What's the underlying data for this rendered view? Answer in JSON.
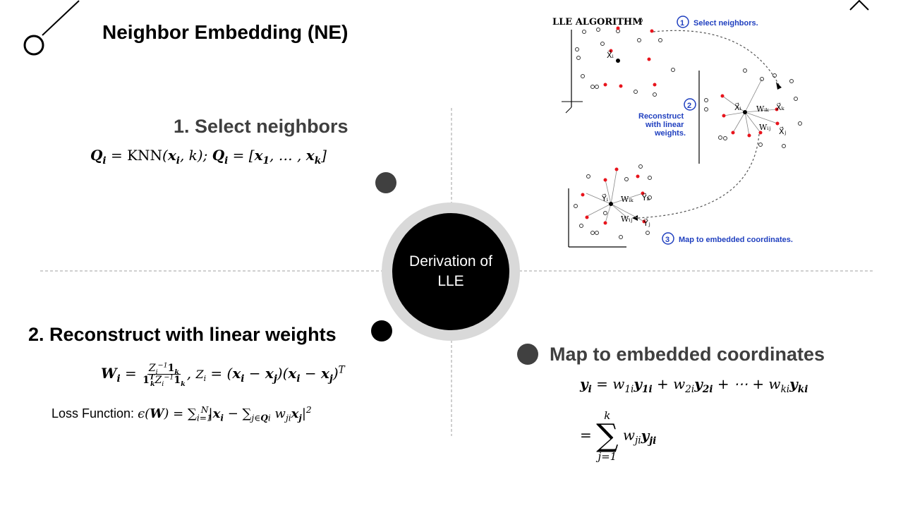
{
  "title": "Neighbor Embedding (NE)",
  "center": {
    "label": "Derivation of LLE"
  },
  "step1": {
    "heading": "1. Select neighbors",
    "formula": "Q_i = KNN(x_i, k); Q_i = [x_1, …, x_k]"
  },
  "step2": {
    "heading": "2. Reconstruct with linear weights",
    "weights_formula": "W_i = (Z_i^-1 1_k) / (1_k^T Z_i^-1 1_k), Z_i = (x_i − x_j)(x_i − x_j)^T",
    "loss_label": "Loss Function:",
    "loss_formula": "ϵ(W) = Σ_{i=1}^{N} |x_i − Σ_{j∈Qi} w_ji x_j|^2"
  },
  "step3": {
    "heading": "Map to embedded coordinates",
    "formula_line1": "y_i = w_1i y_1i + w_2i y_2i + ⋯ + w_ki y_ki",
    "formula_line2": "= Σ_{j=1}^{k} w_ji y_ji"
  },
  "figure": {
    "title": "LLE ALGORITHM",
    "step1_label": "Select neighbors.",
    "step2_label_lines": [
      "Reconstruct",
      "with linear",
      "weights."
    ],
    "step3_label": "Map to embedded coordinates.",
    "num1": "1",
    "num2": "2",
    "num3": "3",
    "labels": {
      "xi_top": "X⃗ᵢ",
      "xi_mid": "X⃗ᵢ",
      "xk": "X⃗ₖ",
      "xj": "X⃗ⱼ",
      "wik": "Wᵢₖ",
      "wij": "Wᵢⱼ",
      "yi": "Y⃗ᵢ",
      "yk": "Y⃗ₖ",
      "yj": "Y⃗ⱼ",
      "wik2": "Wᵢₖ",
      "wij2": "Wᵢⱼ"
    }
  },
  "colors": {
    "neighbor_red": "#e8141c",
    "label_blue": "#1f3fbf",
    "ring_grey": "#d9d9d9",
    "dot_dark": "#404040"
  }
}
